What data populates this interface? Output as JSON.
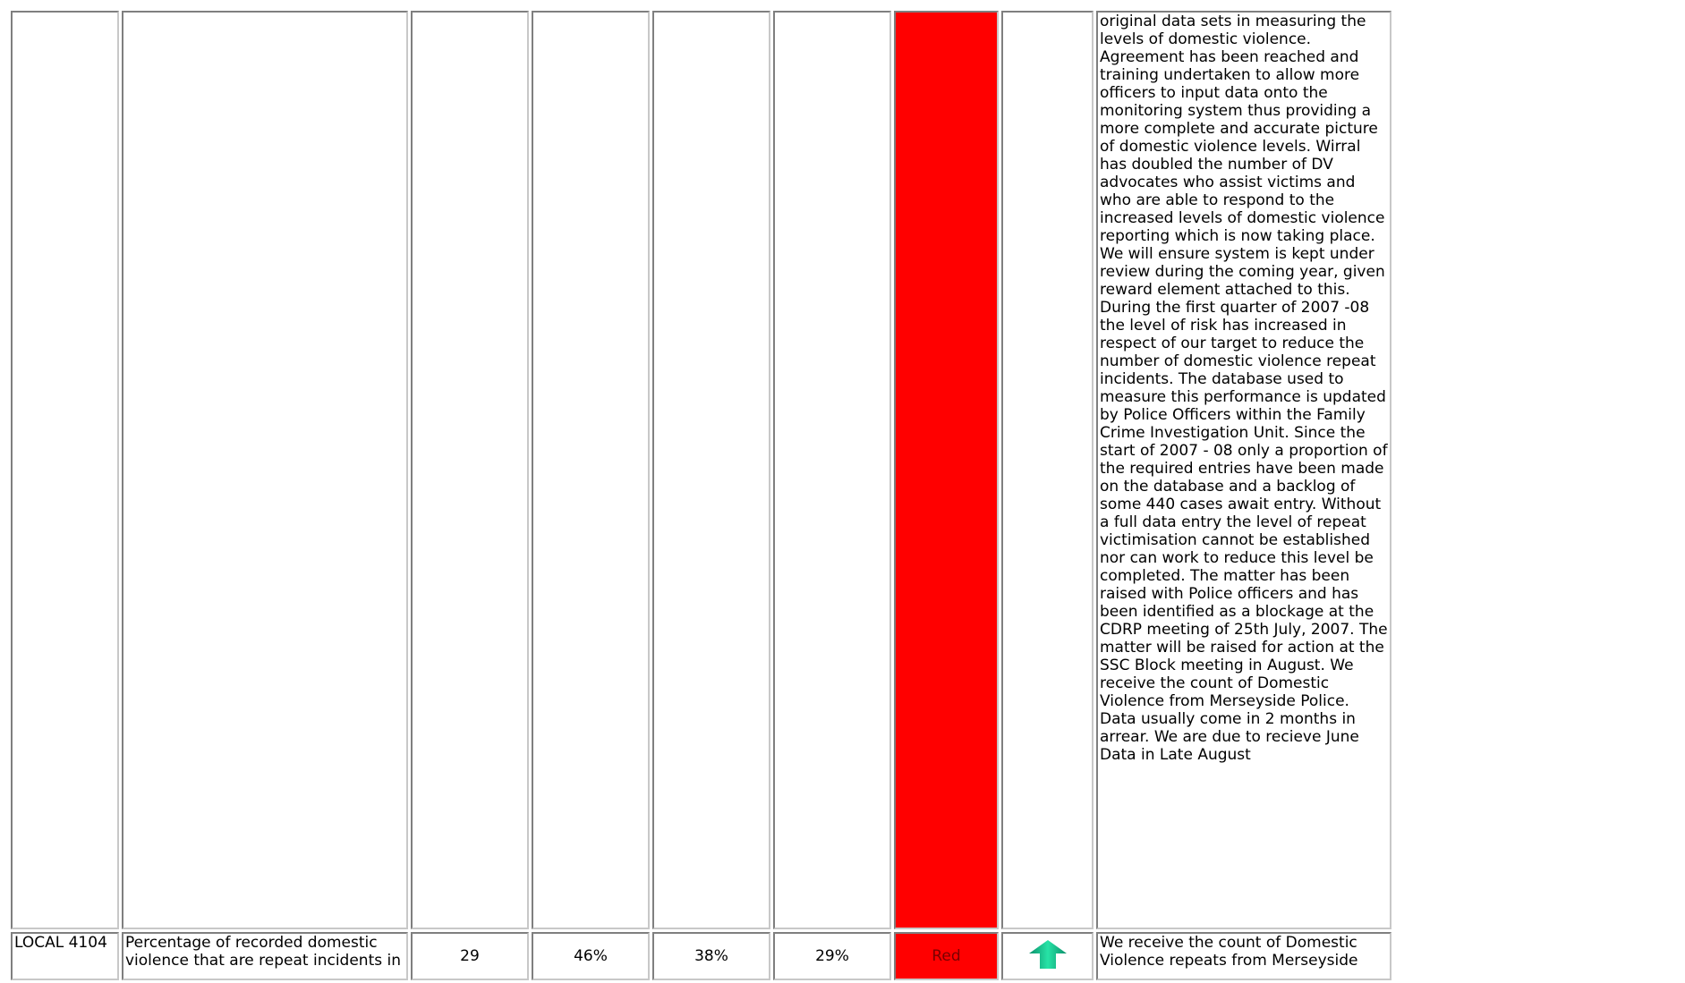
{
  "table": {
    "row_prev": {
      "commentary": "original data sets in measuring the levels of domestic violence. Agreement has been reached and training undertaken to allow more officers to input data onto the monitoring system thus providing a more complete and accurate picture of domestic violence levels. Wirral has doubled the number of DV advocates who assist victims and who are able to respond to the increased levels of domestic violence reporting which is now taking place. We will ensure system is kept under review during the coming year, given reward element attached to this. During the first quarter of 2007 -08 the level of risk has increased in respect of our target to reduce the number of domestic violence repeat incidents. The database used to measure this performance is updated by Police Officers within the Family Crime Investigation Unit. Since the start of 2007 - 08 only a proportion of the required entries have been made on the database and a backlog of some 440 cases await entry. Without a full data entry the level of repeat victimisation cannot be established nor can work to reduce this level be completed. The matter has been raised with Police officers and has been identified as a blockage at the CDRP meeting of 25th July, 2007. The matter will be raised for action at the SSC Block meeting in August. We receive the count of Domestic Violence from Merseyside Police. Data usually come in 2 months in arrear. We are due to recieve June Data in Late August",
      "status_color": "#ff0000"
    },
    "row_local4104": {
      "code": "LOCAL 4104",
      "description": "Percentage of recorded domestic violence that are repeat incidents in",
      "value_1": "29",
      "value_2": "46%",
      "value_3": "38%",
      "value_4": "29%",
      "status": "Red",
      "status_color": "#ff0000",
      "trend_icon": "up-arrow-icon",
      "commentary": "We receive the count of Domestic Violence repeats from Merseyside"
    }
  }
}
